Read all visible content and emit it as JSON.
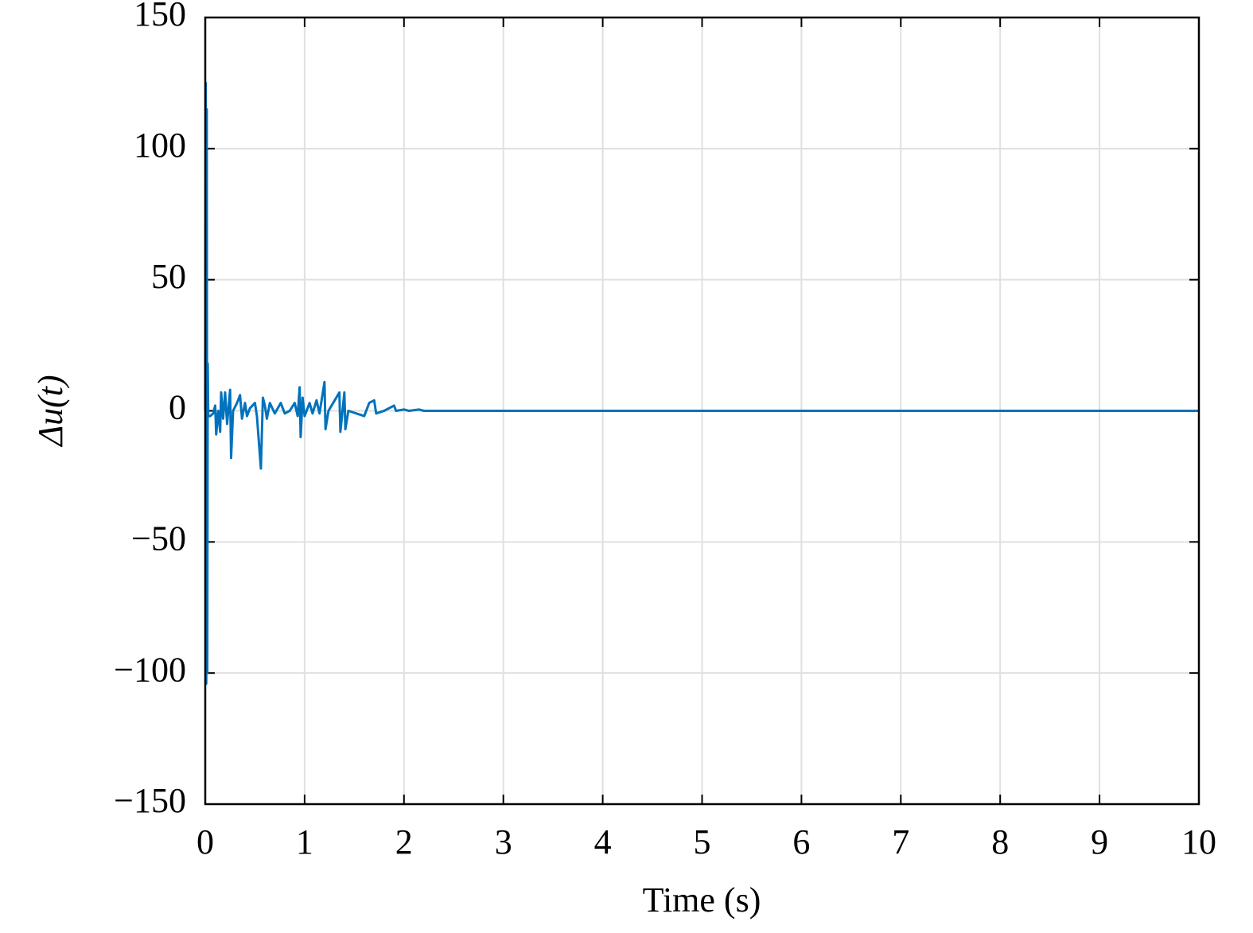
{
  "chart_data": {
    "type": "line",
    "x_label": "Time (s)",
    "y_label": "Δu(t)",
    "color": "#0072bd",
    "grid": true,
    "xlim": [
      0,
      10
    ],
    "xticks": [
      0,
      1,
      2,
      3,
      4,
      5,
      6,
      7,
      8,
      9,
      10
    ],
    "ylim": [
      -150,
      150
    ],
    "yticks": [
      {
        "value": -150,
        "label": "−150"
      },
      {
        "value": -100,
        "label": "−100"
      },
      {
        "value": -50,
        "label": "−50"
      },
      0,
      50,
      100,
      150
    ],
    "x": [
      0,
      0.005,
      0.01,
      0.015,
      0.02,
      0.025,
      0.03,
      0.05,
      0.08,
      0.1,
      0.11,
      0.13,
      0.15,
      0.16,
      0.18,
      0.2,
      0.22,
      0.25,
      0.26,
      0.28,
      0.32,
      0.35,
      0.37,
      0.4,
      0.42,
      0.45,
      0.5,
      0.52,
      0.56,
      0.58,
      0.6,
      0.62,
      0.65,
      0.7,
      0.76,
      0.8,
      0.85,
      0.9,
      0.93,
      0.95,
      0.96,
      0.98,
      1.0,
      1.05,
      1.08,
      1.12,
      1.15,
      1.2,
      1.21,
      1.24,
      1.35,
      1.36,
      1.4,
      1.41,
      1.44,
      1.6,
      1.65,
      1.7,
      1.72,
      1.8,
      1.9,
      1.92,
      2.0,
      2.05,
      2.15,
      2.2,
      10
    ],
    "values": [
      0,
      125,
      -104,
      115,
      -100,
      18,
      -2,
      -2,
      -1,
      2,
      -9,
      0,
      -8,
      7,
      -3,
      7,
      -5,
      8,
      -18,
      0,
      3,
      6,
      -3,
      3,
      -2,
      1,
      3,
      -2,
      -22,
      5,
      2,
      -3,
      3,
      -1,
      3,
      -1,
      0,
      3,
      -2,
      9,
      -10,
      5,
      -2,
      3,
      -1,
      4,
      -1,
      11,
      -7,
      0,
      7,
      -8,
      7,
      -7,
      0,
      -2,
      3,
      4,
      -1,
      0,
      2,
      0,
      0.5,
      0,
      0.5,
      0,
      0
    ]
  }
}
